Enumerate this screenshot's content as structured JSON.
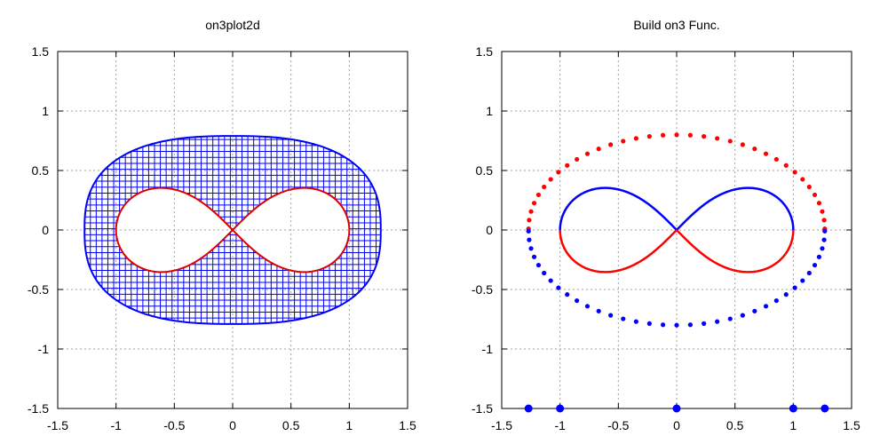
{
  "chart_data": [
    {
      "type": "line",
      "title": "on3plot2d",
      "xlabel": "",
      "ylabel": "",
      "xlim": [
        -1.5,
        1.5
      ],
      "ylim": [
        -1.5,
        1.5
      ],
      "xticks": [
        -1.5,
        -1,
        -0.5,
        0,
        0.5,
        1,
        1.5
      ],
      "xtick_labels": [
        "-1.5",
        "-1",
        "-0.5",
        "0",
        "0.5",
        "1",
        "1.5"
      ],
      "yticks": [
        -1.5,
        -1,
        -0.5,
        0,
        0.5,
        1,
        1.5
      ],
      "ytick_labels": [
        "-1.5",
        "-1",
        "-0.5",
        "0",
        "0.5",
        "1",
        "1.5"
      ],
      "grid": true,
      "series": [
        {
          "name": "outer-region-mesh",
          "kind": "grid-mesh",
          "color": "#0000ff",
          "description_values": {
            "x_half_width": 1.27,
            "y_half_height": 0.79,
            "mesh_step": 0.05
          }
        },
        {
          "name": "lemniscate",
          "kind": "curve",
          "color": "#dd0000",
          "parametric": {
            "scale": 1.0
          }
        }
      ]
    },
    {
      "type": "scatter",
      "title": "Build on3 Func.",
      "xlabel": "",
      "ylabel": "",
      "xlim": [
        -1.5,
        1.5
      ],
      "ylim": [
        -1.5,
        1.5
      ],
      "xticks": [
        -1.5,
        -1,
        -0.5,
        0,
        0.5,
        1,
        1.5
      ],
      "xtick_labels": [
        "-1.5",
        "-1",
        "-0.5",
        "0",
        "0.5",
        "1",
        "1.5"
      ],
      "yticks": [
        -1.5,
        -1,
        -0.5,
        0,
        0.5,
        1,
        1.5
      ],
      "ytick_labels": [
        "-1.5",
        "-1",
        "-0.5",
        "0",
        "0.5",
        "1",
        "1.5"
      ],
      "grid": true,
      "series": [
        {
          "name": "ellipse-upper",
          "color": "#ff0000",
          "a": 1.27,
          "b": 0.79,
          "count": 34
        },
        {
          "name": "ellipse-lower",
          "color": "#0000ff",
          "a": 1.27,
          "b": 0.79,
          "count": 34
        },
        {
          "name": "lemniscate-upper",
          "color": "#0000ff"
        },
        {
          "name": "lemniscate-lower",
          "color": "#ff0000"
        },
        {
          "name": "axis-markers",
          "color": "#0000ff",
          "points": [
            {
              "x": -1.27,
              "y": -1.5
            },
            {
              "x": -1.0,
              "y": -1.5
            },
            {
              "x": 0.0,
              "y": -1.5
            },
            {
              "x": 1.0,
              "y": -1.5
            },
            {
              "x": 1.27,
              "y": -1.5
            }
          ]
        }
      ]
    }
  ]
}
